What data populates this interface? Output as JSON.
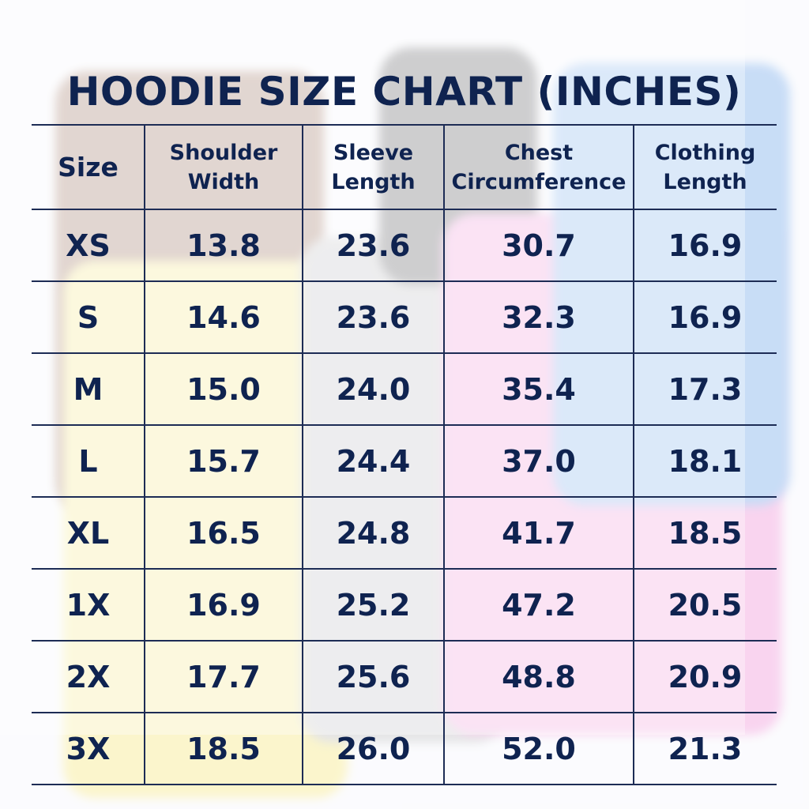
{
  "title": "HOODIE SIZE CHART (INCHES)",
  "table": {
    "header": [
      [
        "Size"
      ],
      [
        "Shoulder",
        "Width"
      ],
      [
        "Sleeve",
        "Length"
      ],
      [
        "Chest",
        "Circumference"
      ],
      [
        "Clothing",
        "Length"
      ]
    ],
    "rows": [
      [
        "XS",
        "13.8",
        "23.6",
        "30.7",
        "16.9"
      ],
      [
        "S",
        "14.6",
        "23.6",
        "32.3",
        "16.9"
      ],
      [
        "M",
        "15.0",
        "24.0",
        "35.4",
        "17.3"
      ],
      [
        "L",
        "15.7",
        "24.4",
        "37.0",
        "18.1"
      ],
      [
        "XL",
        "16.5",
        "24.8",
        "41.7",
        "18.5"
      ],
      [
        "1X",
        "16.9",
        "25.2",
        "47.2",
        "20.5"
      ],
      [
        "2X",
        "17.7",
        "25.6",
        "48.8",
        "20.9"
      ],
      [
        "3X",
        "18.5",
        "26.0",
        "52.0",
        "21.3"
      ]
    ]
  }
}
